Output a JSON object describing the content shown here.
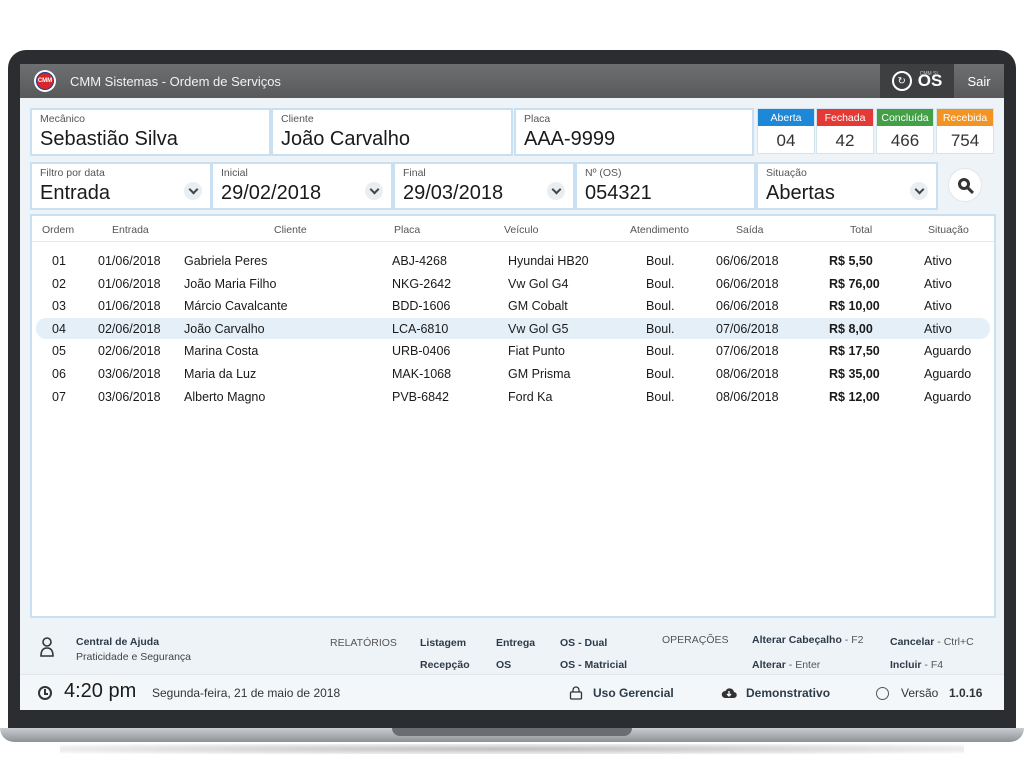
{
  "window": {
    "title": "CMM Sistemas - Ordem de Serviços",
    "logo_text": "CMM",
    "os_small": "CMM SI",
    "os_label": "OS",
    "exit_label": "Sair"
  },
  "fields": {
    "mecanico": {
      "label": "Mecânico",
      "value": "Sebastião Silva"
    },
    "cliente": {
      "label": "Cliente",
      "value": "João Carvalho"
    },
    "placa": {
      "label": "Placa",
      "value": "AAA-9999"
    }
  },
  "status": [
    {
      "label": "Aberta",
      "count": "04",
      "color": "#1e88d8"
    },
    {
      "label": "Fechada",
      "count": "42",
      "color": "#e53935"
    },
    {
      "label": "Concluída",
      "count": "466",
      "color": "#43a047"
    },
    {
      "label": "Recebida",
      "count": "754",
      "color": "#f39322"
    }
  ],
  "filters": {
    "filtro": {
      "label": "Filtro por data",
      "value": "Entrada"
    },
    "inicial": {
      "label": "Inicial",
      "value": "29/02/2018"
    },
    "final": {
      "label": "Final",
      "value": "29/03/2018"
    },
    "numero": {
      "label": "Nº (OS)",
      "value": "054321"
    },
    "situacao": {
      "label": "Situação",
      "value": "Abertas"
    }
  },
  "table": {
    "headers": {
      "ordem": "Ordem",
      "entrada": "Entrada",
      "cliente": "Cliente",
      "placa": "Placa",
      "veiculo": "Veículo",
      "atendimento": "Atendimento",
      "saida": "Saída",
      "total": "Total",
      "situacao": "Situação"
    },
    "rows": [
      {
        "ordem": "01",
        "entrada": "01/06/2018",
        "cliente": "Gabriela Peres",
        "placa": "ABJ-4268",
        "veiculo": "Hyundai HB20",
        "atendimento": "Boul.",
        "saida": "06/06/2018",
        "total": "R$ 5,50",
        "situacao": "Ativo"
      },
      {
        "ordem": "02",
        "entrada": "01/06/2018",
        "cliente": "João Maria Filho",
        "placa": "NKG-2642",
        "veiculo": "Vw Gol G4",
        "atendimento": "Boul.",
        "saida": "06/06/2018",
        "total": "R$ 76,00",
        "situacao": "Ativo"
      },
      {
        "ordem": "03",
        "entrada": "01/06/2018",
        "cliente": "Márcio Cavalcante",
        "placa": "BDD-1606",
        "veiculo": "GM Cobalt",
        "atendimento": "Boul.",
        "saida": "06/06/2018",
        "total": "R$ 10,00",
        "situacao": "Ativo"
      },
      {
        "ordem": "04",
        "entrada": "02/06/2018",
        "cliente": "João Carvalho",
        "placa": "LCA-6810",
        "veiculo": "Vw Gol G5",
        "atendimento": "Boul.",
        "saida": "07/06/2018",
        "total": "R$ 8,00",
        "situacao": "Ativo"
      },
      {
        "ordem": "05",
        "entrada": "02/06/2018",
        "cliente": "Marina Costa",
        "placa": "URB-0406",
        "veiculo": "Fiat Punto",
        "atendimento": "Boul.",
        "saida": "07/06/2018",
        "total": "R$ 17,50",
        "situacao": "Aguardo"
      },
      {
        "ordem": "06",
        "entrada": "03/06/2018",
        "cliente": "Maria da Luz",
        "placa": "MAK-1068",
        "veiculo": "GM Prisma",
        "atendimento": "Boul.",
        "saida": "08/06/2018",
        "total": "R$ 35,00",
        "situacao": "Aguardo"
      },
      {
        "ordem": "07",
        "entrada": "03/06/2018",
        "cliente": "Alberto Magno",
        "placa": "PVB-6842",
        "veiculo": "Ford Ka",
        "atendimento": "Boul.",
        "saida": "08/06/2018",
        "total": "R$ 12,00",
        "situacao": "Aguardo"
      }
    ],
    "selected_row": "04"
  },
  "footer": {
    "help_title": "Central de Ajuda",
    "help_sub": "Praticidade e Segurança",
    "relatorios_label": "RELATÓRIOS",
    "listagem": "Listagem",
    "recepcao": "Recepção",
    "entrega": "Entrega",
    "os": "OS",
    "os_dual": "OS - Dual",
    "os_matricial": "OS - Matricial",
    "operacoes_label": "OPERAÇÕES",
    "alterar_cabecalho": "Alterar Cabeçalho",
    "alterar_cabecalho_key": " - F2",
    "alterar": "Alterar",
    "alterar_key": " - Enter",
    "cancelar": "Cancelar",
    "cancelar_key": " - Ctrl+C",
    "incluir": "Incluir",
    "incluir_key": " - F4"
  },
  "statusbar": {
    "time": "4:20 pm",
    "date": "Segunda-feira, 21 de maio de 2018",
    "uso_gerencial": "Uso Gerencial",
    "demonstrativo": "Demonstrativo",
    "versao_label": "Versão",
    "versao_value": "1.0.16"
  }
}
